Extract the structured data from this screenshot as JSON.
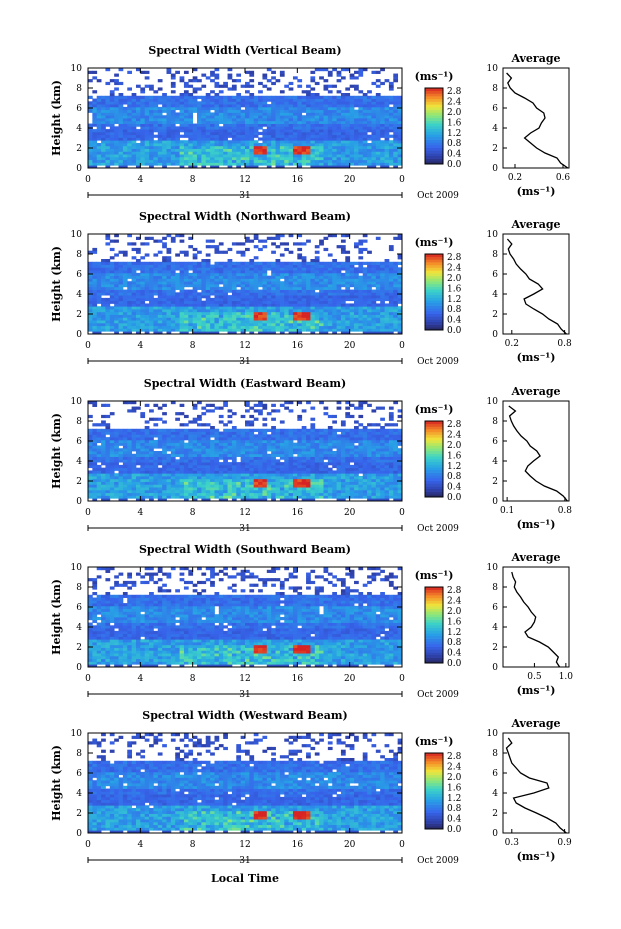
{
  "chart_data": [
    {
      "type": "heatmap",
      "title": "Spectral Width (Vertical Beam)",
      "ylabel": "Height (km)",
      "xticks": [
        "0",
        "4",
        "8",
        "12",
        "16",
        "20",
        "0"
      ],
      "yticks": [
        "0",
        "2",
        "4",
        "6",
        "8",
        "10"
      ],
      "xlim": [
        0,
        24
      ],
      "ylim": [
        0,
        10
      ],
      "date_label": "31",
      "month_label": "Oct 2009",
      "colorbar": {
        "unit": "(ms⁻¹)",
        "ticks": [
          "0.0",
          "0.4",
          "0.8",
          "1.2",
          "1.6",
          "2.0",
          "2.4",
          "2.8"
        ]
      },
      "avg": {
        "title": "Average",
        "xlabel": "(ms⁻¹)",
        "xticks": [
          "0.2",
          "0.6"
        ],
        "xlim": [
          0.1,
          0.65
        ],
        "profile": [
          [
            0.0,
            0.64
          ],
          [
            0.5,
            0.58
          ],
          [
            1.0,
            0.55
          ],
          [
            1.5,
            0.45
          ],
          [
            2.0,
            0.38
          ],
          [
            2.5,
            0.33
          ],
          [
            3.0,
            0.28
          ],
          [
            3.5,
            0.33
          ],
          [
            4.0,
            0.4
          ],
          [
            4.5,
            0.42
          ],
          [
            5.0,
            0.45
          ],
          [
            5.5,
            0.44
          ],
          [
            6.0,
            0.38
          ],
          [
            6.5,
            0.35
          ],
          [
            7.0,
            0.28
          ],
          [
            7.5,
            0.2
          ],
          [
            8.0,
            0.16
          ],
          [
            8.5,
            0.14
          ],
          [
            9.0,
            0.17
          ],
          [
            9.5,
            0.13
          ]
        ]
      }
    },
    {
      "type": "heatmap",
      "title": "Spectral Width (Northward Beam)",
      "ylabel": "Height (km)",
      "xticks": [
        "0",
        "4",
        "8",
        "12",
        "16",
        "20",
        "0"
      ],
      "yticks": [
        "0",
        "2",
        "4",
        "6",
        "8",
        "10"
      ],
      "xlim": [
        0,
        24
      ],
      "ylim": [
        0,
        10
      ],
      "date_label": "31",
      "month_label": "Oct 2009",
      "colorbar": {
        "unit": "(ms⁻¹)",
        "ticks": [
          "0.0",
          "0.4",
          "0.8",
          "1.2",
          "1.6",
          "2.0",
          "2.4",
          "2.8"
        ]
      },
      "avg": {
        "title": "Average",
        "xlabel": "(ms⁻¹)",
        "xticks": [
          "0.2",
          "0.8"
        ],
        "xlim": [
          0.1,
          0.85
        ],
        "profile": [
          [
            0.0,
            0.82
          ],
          [
            0.5,
            0.76
          ],
          [
            1.0,
            0.72
          ],
          [
            1.5,
            0.62
          ],
          [
            2.0,
            0.55
          ],
          [
            2.5,
            0.45
          ],
          [
            3.0,
            0.36
          ],
          [
            3.5,
            0.34
          ],
          [
            4.0,
            0.45
          ],
          [
            4.5,
            0.55
          ],
          [
            5.0,
            0.5
          ],
          [
            5.5,
            0.4
          ],
          [
            6.0,
            0.36
          ],
          [
            6.5,
            0.3
          ],
          [
            7.0,
            0.25
          ],
          [
            7.5,
            0.22
          ],
          [
            8.0,
            0.18
          ],
          [
            8.5,
            0.16
          ],
          [
            9.0,
            0.2
          ],
          [
            9.5,
            0.15
          ]
        ]
      }
    },
    {
      "type": "heatmap",
      "title": "Spectral Width (Eastward Beam)",
      "ylabel": "Height (km)",
      "xticks": [
        "0",
        "4",
        "8",
        "12",
        "16",
        "20",
        "0"
      ],
      "yticks": [
        "0",
        "2",
        "4",
        "6",
        "8",
        "10"
      ],
      "xlim": [
        0,
        24
      ],
      "ylim": [
        0,
        10
      ],
      "date_label": "31",
      "month_label": "Oct 2009",
      "colorbar": {
        "unit": "(ms⁻¹)",
        "ticks": [
          "0.0",
          "0.4",
          "0.8",
          "1.2",
          "1.6",
          "2.0",
          "2.4",
          "2.8"
        ]
      },
      "avg": {
        "title": "Average",
        "xlabel": "(ms⁻¹)",
        "xticks": [
          "0.1",
          "0.8"
        ],
        "xlim": [
          0.05,
          0.85
        ],
        "profile": [
          [
            0.0,
            0.83
          ],
          [
            0.5,
            0.78
          ],
          [
            1.0,
            0.7
          ],
          [
            1.5,
            0.55
          ],
          [
            2.0,
            0.45
          ],
          [
            2.5,
            0.38
          ],
          [
            3.0,
            0.32
          ],
          [
            3.5,
            0.35
          ],
          [
            4.0,
            0.42
          ],
          [
            4.5,
            0.5
          ],
          [
            5.0,
            0.46
          ],
          [
            5.5,
            0.38
          ],
          [
            6.0,
            0.34
          ],
          [
            6.5,
            0.27
          ],
          [
            7.0,
            0.22
          ],
          [
            7.5,
            0.18
          ],
          [
            8.0,
            0.15
          ],
          [
            8.5,
            0.13
          ],
          [
            9.0,
            0.2
          ],
          [
            9.5,
            0.12
          ]
        ]
      }
    },
    {
      "type": "heatmap",
      "title": "Spectral Width (Southward Beam)",
      "ylabel": "Height (km)",
      "xticks": [
        "0",
        "4",
        "8",
        "12",
        "16",
        "20",
        "0"
      ],
      "yticks": [
        "0",
        "2",
        "4",
        "6",
        "8",
        "10"
      ],
      "xlim": [
        0,
        24
      ],
      "ylim": [
        0,
        10
      ],
      "date_label": "31",
      "month_label": "Oct 2009",
      "colorbar": {
        "unit": "(ms⁻¹)",
        "ticks": [
          "0.0",
          "0.4",
          "0.8",
          "1.2",
          "1.6",
          "2.0",
          "2.4",
          "2.8"
        ]
      },
      "avg": {
        "title": "Average",
        "xlabel": "(ms⁻¹)",
        "xticks": [
          "0.5",
          "1.0"
        ],
        "xlim": [
          0.0,
          1.05
        ],
        "profile": [
          [
            0.0,
            0.9
          ],
          [
            0.5,
            0.85
          ],
          [
            1.0,
            0.88
          ],
          [
            1.5,
            0.8
          ],
          [
            2.0,
            0.72
          ],
          [
            2.5,
            0.58
          ],
          [
            3.0,
            0.4
          ],
          [
            3.5,
            0.35
          ],
          [
            4.0,
            0.45
          ],
          [
            4.5,
            0.5
          ],
          [
            5.0,
            0.52
          ],
          [
            5.5,
            0.45
          ],
          [
            6.0,
            0.4
          ],
          [
            6.5,
            0.33
          ],
          [
            7.0,
            0.28
          ],
          [
            7.5,
            0.22
          ],
          [
            8.0,
            0.18
          ],
          [
            8.5,
            0.2
          ],
          [
            9.0,
            0.16
          ],
          [
            9.5,
            0.14
          ]
        ]
      }
    },
    {
      "type": "heatmap",
      "title": "Spectral Width (Westward Beam)",
      "ylabel": "Height (km)",
      "xticks": [
        "0",
        "4",
        "8",
        "12",
        "16",
        "20",
        "0"
      ],
      "yticks": [
        "0",
        "2",
        "4",
        "6",
        "8",
        "10"
      ],
      "xlim": [
        0,
        24
      ],
      "ylim": [
        0,
        10
      ],
      "date_label": "31",
      "month_label": "Oct 2009",
      "xlabel": "Local Time",
      "colorbar": {
        "unit": "(ms⁻¹)",
        "ticks": [
          "0.0",
          "0.4",
          "0.8",
          "1.2",
          "1.6",
          "2.0",
          "2.4",
          "2.8"
        ]
      },
      "avg": {
        "title": "Average",
        "xlabel": "(ms⁻¹)",
        "xticks": [
          "0.3",
          "0.9"
        ],
        "xlim": [
          0.2,
          0.95
        ],
        "profile": [
          [
            0.0,
            0.92
          ],
          [
            0.5,
            0.85
          ],
          [
            1.0,
            0.8
          ],
          [
            1.5,
            0.7
          ],
          [
            2.0,
            0.58
          ],
          [
            2.5,
            0.45
          ],
          [
            3.0,
            0.35
          ],
          [
            3.5,
            0.32
          ],
          [
            4.0,
            0.55
          ],
          [
            4.5,
            0.72
          ],
          [
            5.0,
            0.7
          ],
          [
            5.5,
            0.5
          ],
          [
            6.0,
            0.4
          ],
          [
            6.5,
            0.35
          ],
          [
            7.0,
            0.3
          ],
          [
            7.5,
            0.28
          ],
          [
            8.0,
            0.26
          ],
          [
            8.5,
            0.24
          ],
          [
            9.0,
            0.3
          ],
          [
            9.5,
            0.26
          ]
        ]
      }
    }
  ]
}
